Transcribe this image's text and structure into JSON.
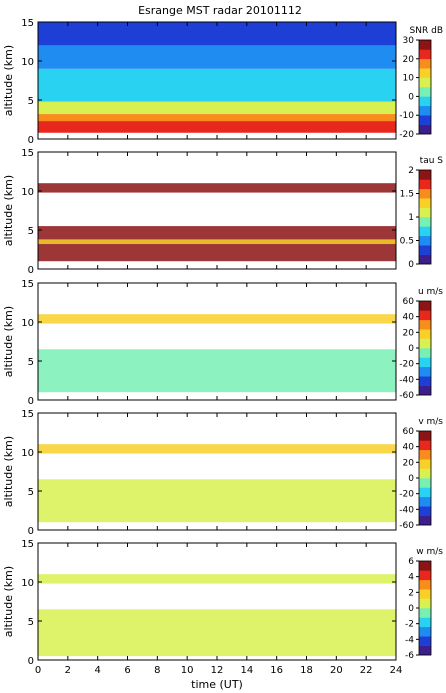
{
  "chart_data": {
    "type": "heatmap",
    "title": "Esrange MST radar 20101112",
    "xlabel": "time (UT)",
    "ylabel": "altitude (km)",
    "xlim": [
      0,
      24
    ],
    "ylim": [
      0,
      15
    ],
    "x_ticks": [
      "0",
      "2",
      "4",
      "6",
      "8",
      "10",
      "12",
      "14",
      "16",
      "18",
      "20",
      "22",
      "24"
    ],
    "y_ticks": [
      "0",
      "5",
      "10",
      "15"
    ],
    "panels": [
      {
        "name": "snr",
        "colorbar_label": "SNR dB",
        "range": [
          -20,
          30
        ],
        "colorbar_ticks": [
          "30",
          "20",
          "10",
          "0",
          "-10",
          "-20"
        ],
        "layers": [
          {
            "alt": [
              0.8,
              2.3
            ],
            "value": 22
          },
          {
            "alt": [
              2.3,
              3.2
            ],
            "value": 15
          },
          {
            "alt": [
              3.2,
              4.8
            ],
            "value": 6
          },
          {
            "alt": [
              4.8,
              9.0
            ],
            "value": -2
          },
          {
            "alt": [
              9.0,
              12.0
            ],
            "value": -7
          },
          {
            "alt": [
              12.0,
              15.0
            ],
            "value": -13
          }
        ]
      },
      {
        "name": "tau",
        "colorbar_label": "tau S",
        "range": [
          0,
          2
        ],
        "colorbar_ticks": [
          "2",
          "1.5",
          "1",
          "0.5",
          "0"
        ],
        "layers": [
          {
            "alt": [
              1.0,
              5.5
            ],
            "value": 2.0
          },
          {
            "alt": [
              3.2,
              3.8
            ],
            "value": 1.3
          },
          {
            "alt": [
              9.8,
              11.0
            ],
            "value": 2.0
          }
        ]
      },
      {
        "name": "u",
        "colorbar_label": "u m/s",
        "range": [
          -60,
          60
        ],
        "colorbar_ticks": [
          "60",
          "40",
          "20",
          "0",
          "-20",
          "-40",
          "-60"
        ],
        "layers": [
          {
            "alt": [
              1.0,
              6.5
            ],
            "value": -10
          },
          {
            "alt": [
              9.8,
              11.0
            ],
            "value": 12
          }
        ]
      },
      {
        "name": "v",
        "colorbar_label": "v m/s",
        "range": [
          -60,
          60
        ],
        "colorbar_ticks": [
          "60",
          "40",
          "20",
          "0",
          "-20",
          "-40",
          "-60"
        ],
        "layers": [
          {
            "alt": [
              1.0,
              6.5
            ],
            "value": 8
          },
          {
            "alt": [
              9.8,
              11.0
            ],
            "value": 14
          }
        ]
      },
      {
        "name": "w",
        "colorbar_label": "w m/s",
        "range": [
          -6,
          6
        ],
        "colorbar_ticks": [
          "6",
          "4",
          "2",
          "0",
          "-2",
          "-4",
          "-6"
        ],
        "layers": [
          {
            "alt": [
              0.5,
              6.5
            ],
            "value": 0.5
          },
          {
            "alt": [
              9.8,
              11.0
            ],
            "value": 0.8
          }
        ]
      }
    ],
    "colormap": [
      "#3b1f8c",
      "#1e3fd6",
      "#1e8cf0",
      "#28d2f0",
      "#78f0b4",
      "#d8f050",
      "#f8d028",
      "#f88c1c",
      "#e8281c",
      "#8c1414"
    ],
    "grid": false
  }
}
